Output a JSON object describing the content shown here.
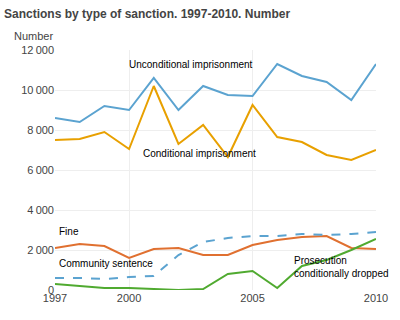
{
  "chart_data": {
    "type": "line",
    "title": "Sanctions by type of sanction. 1997-2010. Number",
    "ylabel": "Number",
    "x": [
      1997,
      1998,
      1999,
      2000,
      2001,
      2002,
      2003,
      2004,
      2005,
      2006,
      2007,
      2008,
      2009,
      2010
    ],
    "series": [
      {
        "color": "#5ba3d0",
        "line_style": "solid",
        "values": [
          8600,
          8400,
          9200,
          9000,
          10600,
          9000,
          10200,
          9750,
          9700,
          11300,
          10700,
          10400,
          9500,
          11300
        ]
      },
      {
        "color": "#e8a000",
        "line_style": "solid",
        "values": [
          7500,
          7550,
          7900,
          7050,
          10200,
          7300,
          8250,
          6650,
          9250,
          7650,
          7400,
          6750,
          6500,
          7000
        ]
      },
      {
        "color": "#e07030",
        "line_style": "solid",
        "values": [
          2100,
          2300,
          2200,
          1600,
          2050,
          2100,
          1750,
          1750,
          2250,
          2500,
          2650,
          2700,
          2100,
          2050
        ]
      },
      {
        "color": "#50aa30",
        "line_style": "solid",
        "values": [
          300,
          200,
          100,
          100,
          50,
          0,
          50,
          800,
          950,
          100,
          1200,
          1500,
          2000,
          2550
        ]
      },
      {
        "color": "#5ba3d0",
        "line_style": "dashed",
        "values": [
          600,
          600,
          550,
          650,
          700,
          1750,
          2400,
          2600,
          2700,
          2700,
          2800,
          2750,
          2800,
          2900
        ]
      }
    ],
    "annotations": [
      {
        "x": 2002.5,
        "y": 10900,
        "text": "Unconditional imprisonment"
      },
      {
        "x": 2000.5,
        "y": 6450,
        "text": "Conditional imprisonment"
      },
      {
        "x": 1997.1,
        "y": 2550,
        "text": "Fine"
      },
      {
        "x": 1997.1,
        "y": 950,
        "text": "Community sentence"
      },
      {
        "x": 2006.6,
        "y": 450,
        "text": "Prosecution\nconditionally dropped"
      }
    ],
    "xlim": [
      1997,
      2010
    ],
    "xticks": [
      1997,
      2000,
      2005,
      2010
    ],
    "ylim": [
      0,
      12000
    ],
    "yticks": [
      0,
      {
        "value": 2000,
        "label": "2 000"
      },
      {
        "value": 4000,
        "label": "4 000"
      },
      {
        "value": 6000,
        "label": "6 000"
      },
      {
        "value": 8000,
        "label": "8 000"
      },
      {
        "value": 10000,
        "label": "10 000"
      },
      {
        "value": 12000,
        "label": "12 000"
      }
    ],
    "grid": true
  }
}
